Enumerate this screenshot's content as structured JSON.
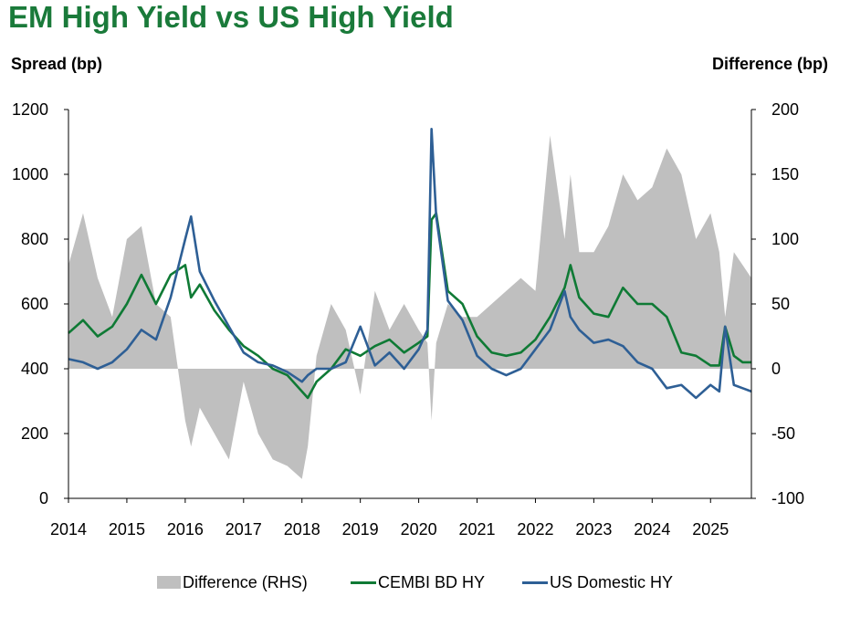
{
  "title": "EM High Yield vs US High Yield",
  "left_axis_label": "Spread (bp)",
  "right_axis_label": "Difference (bp)",
  "colors": {
    "title": "#1a7a3a",
    "difference": "#bfbfbf",
    "cembi": "#0f7a35",
    "us_hy": "#2e5f95"
  },
  "legend": {
    "difference": "Difference (RHS)",
    "cembi": "CEMBI BD HY",
    "us_hy": "US Domestic HY"
  },
  "chart_data": {
    "type": "line",
    "title": "EM High Yield vs US High Yield",
    "xlabel": "",
    "ylabel": "Spread (bp)",
    "y2label": "Difference (bp)",
    "xlim": [
      2014.0,
      2025.7
    ],
    "ylim": [
      0,
      1200
    ],
    "y2lim": [
      -100,
      200
    ],
    "x_ticks": [
      "2014",
      "2015",
      "2016",
      "2017",
      "2018",
      "2019",
      "2020",
      "2021",
      "2022",
      "2023",
      "2024",
      "2025"
    ],
    "y_ticks": [
      "0",
      "200",
      "400",
      "600",
      "800",
      "1000",
      "1200"
    ],
    "y2_ticks": [
      "-100",
      "-50",
      "0",
      "50",
      "100",
      "150",
      "200"
    ],
    "legend_position": "bottom",
    "x": [
      2014.0,
      2014.25,
      2014.5,
      2014.75,
      2015.0,
      2015.25,
      2015.5,
      2015.75,
      2016.0,
      2016.1,
      2016.25,
      2016.5,
      2016.75,
      2017.0,
      2017.25,
      2017.5,
      2017.75,
      2018.0,
      2018.1,
      2018.25,
      2018.5,
      2018.75,
      2019.0,
      2019.25,
      2019.5,
      2019.75,
      2020.0,
      2020.15,
      2020.22,
      2020.3,
      2020.5,
      2020.75,
      2021.0,
      2021.25,
      2021.5,
      2021.75,
      2022.0,
      2022.25,
      2022.5,
      2022.6,
      2022.75,
      2023.0,
      2023.25,
      2023.5,
      2023.75,
      2024.0,
      2024.25,
      2024.5,
      2024.75,
      2025.0,
      2025.15,
      2025.25,
      2025.4,
      2025.55,
      2025.7
    ],
    "series": [
      {
        "name": "CEMBI BD HY",
        "axis": "left",
        "values": [
          510,
          550,
          500,
          530,
          600,
          690,
          600,
          690,
          720,
          620,
          660,
          580,
          520,
          470,
          440,
          400,
          380,
          330,
          310,
          360,
          400,
          460,
          440,
          470,
          490,
          450,
          480,
          500,
          860,
          880,
          640,
          600,
          500,
          450,
          440,
          450,
          490,
          560,
          650,
          720,
          620,
          570,
          560,
          650,
          600,
          600,
          560,
          450,
          440,
          410,
          410,
          530,
          440,
          420,
          420
        ]
      },
      {
        "name": "US Domestic HY",
        "axis": "left",
        "values": [
          430,
          420,
          400,
          420,
          460,
          520,
          490,
          620,
          800,
          870,
          700,
          610,
          530,
          450,
          420,
          410,
          390,
          360,
          380,
          400,
          400,
          420,
          530,
          410,
          450,
          400,
          460,
          520,
          1140,
          870,
          610,
          550,
          440,
          400,
          380,
          400,
          460,
          520,
          640,
          560,
          520,
          480,
          490,
          470,
          420,
          400,
          340,
          350,
          310,
          350,
          330,
          530,
          350,
          340,
          330
        ]
      },
      {
        "name": "Difference (RHS)",
        "axis": "right",
        "type": "area",
        "values": [
          80,
          120,
          70,
          40,
          100,
          110,
          50,
          40,
          -40,
          -60,
          -30,
          -50,
          -70,
          -10,
          -50,
          -70,
          -75,
          -85,
          -60,
          10,
          50,
          30,
          -20,
          60,
          30,
          50,
          30,
          20,
          -40,
          20,
          50,
          40,
          40,
          50,
          60,
          70,
          60,
          180,
          100,
          150,
          90,
          90,
          110,
          150,
          130,
          140,
          170,
          150,
          100,
          120,
          90,
          40,
          90,
          80,
          70
        ]
      }
    ]
  }
}
